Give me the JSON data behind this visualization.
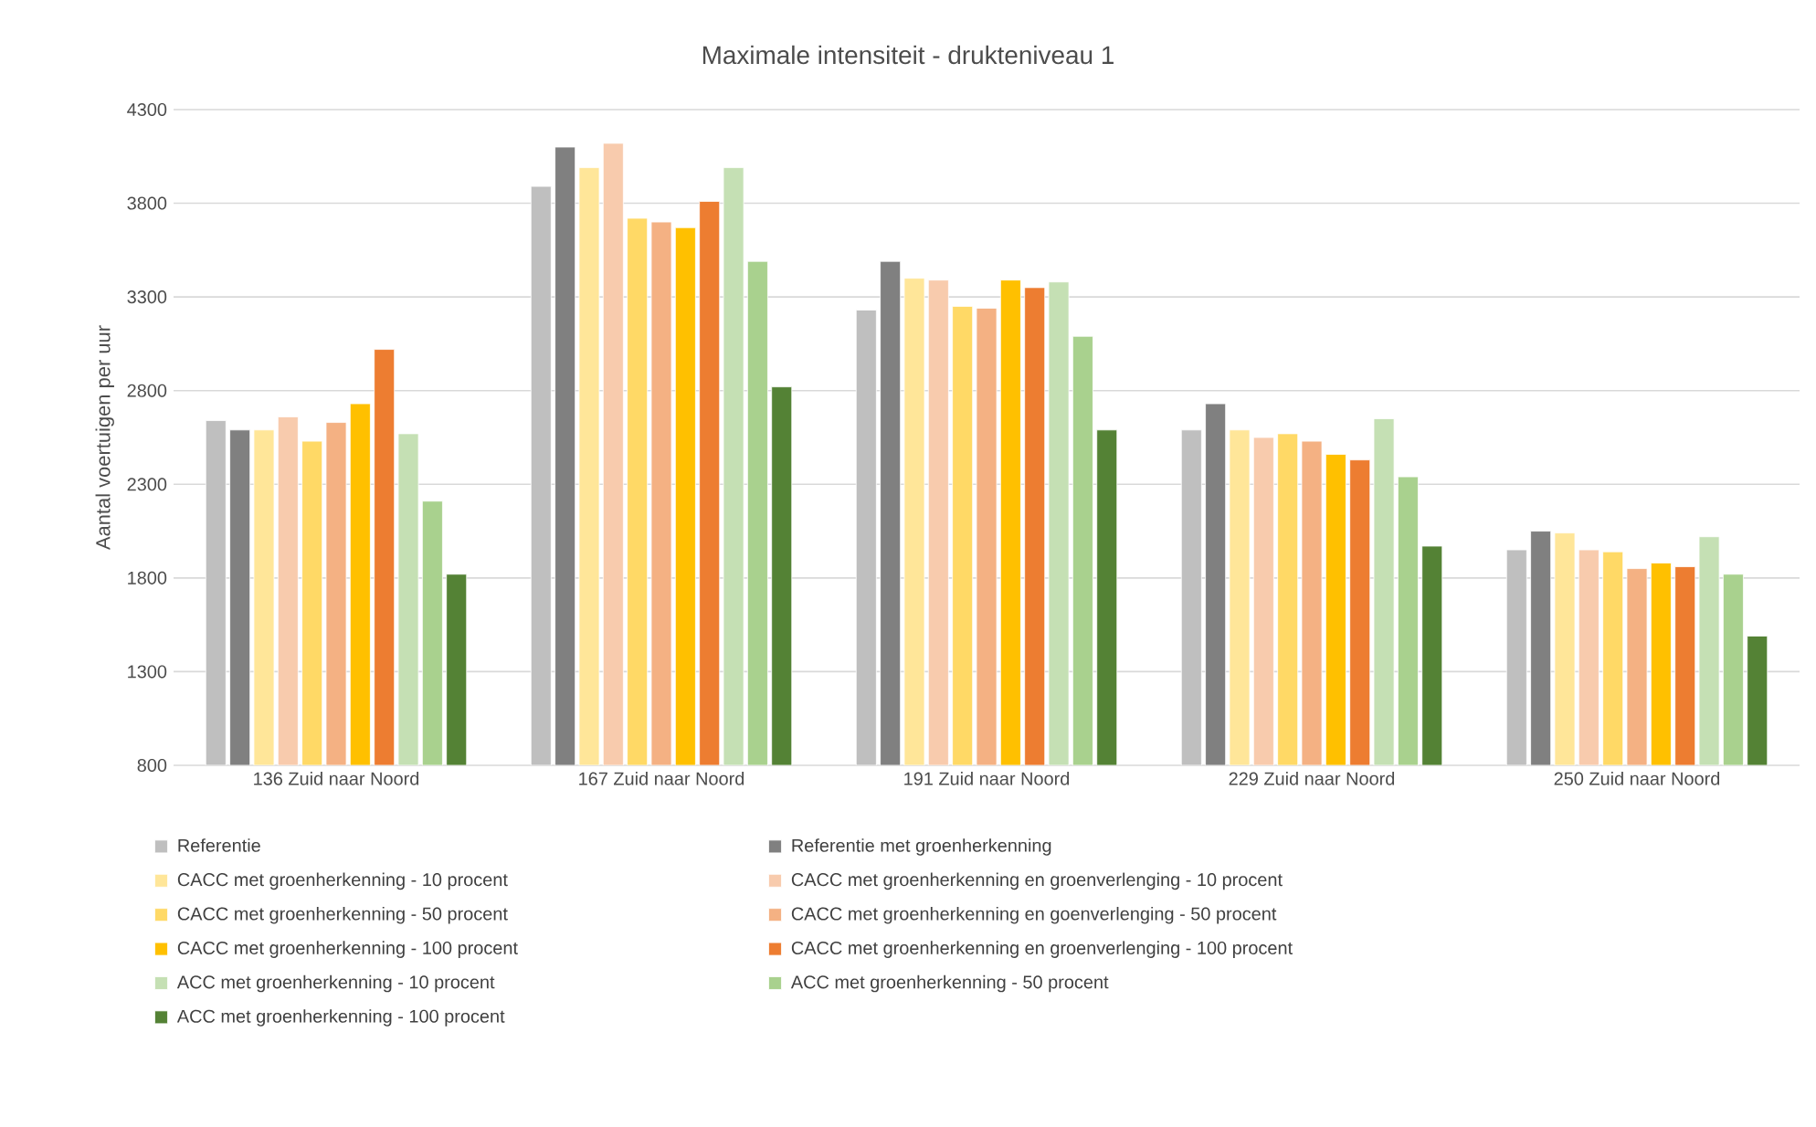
{
  "chart_data": {
    "type": "bar",
    "title": "Maximale intensiteit - drukteniveau 1",
    "ylabel": "Aantal voertuigen per uur",
    "categories": [
      "136 Zuid naar Noord",
      "167 Zuid naar Noord",
      "191 Zuid naar Noord",
      "229 Zuid naar Noord",
      "250 Zuid naar Noord"
    ],
    "ylim": [
      800,
      4300
    ],
    "yticks": [
      800,
      1300,
      1800,
      2300,
      2800,
      3300,
      3800,
      4300
    ],
    "grid": "y",
    "legend": "bottom",
    "series": [
      {
        "name": "Referentie",
        "color": "#bfbfbf",
        "values": [
          2640,
          3890,
          3230,
          2590,
          1950
        ]
      },
      {
        "name": "Referentie met groenherkenning",
        "color": "#808080",
        "values": [
          2590,
          4100,
          3490,
          2730,
          2050
        ]
      },
      {
        "name": "CACC met groenherkenning - 10 procent",
        "color": "#ffe699",
        "values": [
          2590,
          3990,
          3400,
          2590,
          2040
        ]
      },
      {
        "name": "CACC met groenherkenning en groenverlenging - 10 procent",
        "color": "#f8cbad",
        "values": [
          2660,
          4120,
          3390,
          2550,
          1950
        ]
      },
      {
        "name": "CACC met groenherkenning - 50 procent",
        "color": "#ffd966",
        "values": [
          2530,
          3720,
          3250,
          2570,
          1940
        ]
      },
      {
        "name": "CACC met groenherkenning en goenverlenging -  50 procent",
        "color": "#f4b183",
        "values": [
          2630,
          3700,
          3240,
          2530,
          1850
        ]
      },
      {
        "name": "CACC met groenherkenning - 100 procent",
        "color": "#ffc000",
        "values": [
          2730,
          3670,
          3390,
          2460,
          1880
        ]
      },
      {
        "name": "CACC met groenherkenning en groenverlenging -  100 procent",
        "color": "#ed7d31",
        "values": [
          3020,
          3810,
          3350,
          2430,
          1860
        ]
      },
      {
        "name": "ACC met groenherkenning -  10 procent",
        "color": "#c5e0b4",
        "values": [
          2570,
          3990,
          3380,
          2650,
          2020
        ]
      },
      {
        "name": "ACC met groenherkenning -  50 procent",
        "color": "#a9d18e",
        "values": [
          2210,
          3490,
          3090,
          2340,
          1820
        ]
      },
      {
        "name": "ACC met groenherkenning -  100 procent",
        "color": "#548235",
        "values": [
          1820,
          2820,
          2590,
          1970,
          1490
        ]
      }
    ]
  }
}
